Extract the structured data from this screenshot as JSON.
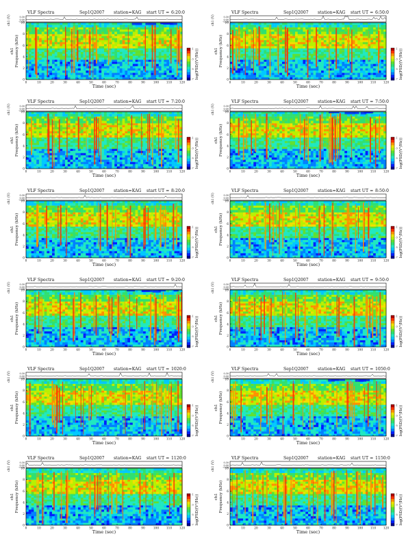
{
  "page": {
    "header_title": "VLF Spectra",
    "date": "Sep1Q2007",
    "station": "station=KAG",
    "start_prefix": "start UT =",
    "time_label": "Time (sec)",
    "top_ylabel": "ch1 (V)",
    "spec_ylabel_channel": "ch1",
    "spec_ylabel": "Frequency (kHz)",
    "colorbar_label": "log(PSD/(V²/Hz))",
    "colorbar_ticks": [
      "-1",
      "-3",
      "-5",
      "-7"
    ]
  },
  "chart_data": [
    {
      "type": "heatmap",
      "start_ut": "6:20:0",
      "xlabel": "Time (sec)",
      "ylabel": "Frequency (kHz)",
      "xlim": [
        0,
        120
      ],
      "ylim": [
        0,
        10
      ],
      "top_ylim": [
        -0.3,
        0.3
      ],
      "xticks": [
        0,
        10,
        20,
        30,
        40,
        50,
        60,
        70,
        80,
        90,
        100,
        110,
        120
      ],
      "yticks": [
        0,
        2,
        4,
        6,
        8,
        10
      ],
      "top_yticks": [
        "0.30",
        "0.00",
        "-0.30"
      ],
      "colormap": "jet"
    },
    {
      "type": "heatmap",
      "start_ut": "6:50:0",
      "xlabel": "Time (sec)",
      "ylabel": "Frequency (kHz)",
      "xlim": [
        0,
        120
      ],
      "ylim": [
        0,
        10
      ],
      "top_ylim": [
        -0.3,
        0.3
      ],
      "xticks": [
        0,
        10,
        20,
        30,
        40,
        50,
        60,
        70,
        80,
        90,
        100,
        110,
        120
      ],
      "yticks": [
        0,
        2,
        4,
        6,
        8,
        10
      ],
      "top_yticks": [
        "0.30",
        "0.00",
        "-0.30"
      ],
      "colormap": "jet"
    },
    {
      "type": "heatmap",
      "start_ut": "7:20:0",
      "xlabel": "Time (sec)",
      "ylabel": "Frequency (kHz)",
      "xlim": [
        0,
        120
      ],
      "ylim": [
        0,
        10
      ],
      "top_ylim": [
        -0.3,
        0.3
      ],
      "xticks": [
        0,
        10,
        20,
        30,
        40,
        50,
        60,
        70,
        80,
        90,
        100,
        110,
        120
      ],
      "yticks": [
        0,
        2,
        4,
        6,
        8,
        10
      ],
      "top_yticks": [
        "0.30",
        "0.00",
        "-0.30"
      ],
      "colormap": "jet"
    },
    {
      "type": "heatmap",
      "start_ut": "7:50:0",
      "xlabel": "Time (sec)",
      "ylabel": "Frequency (kHz)",
      "xlim": [
        0,
        120
      ],
      "ylim": [
        0,
        10
      ],
      "top_ylim": [
        -0.3,
        0.3
      ],
      "xticks": [
        0,
        10,
        20,
        30,
        40,
        50,
        60,
        70,
        80,
        90,
        100,
        110,
        120
      ],
      "yticks": [
        0,
        2,
        4,
        6,
        8,
        10
      ],
      "top_yticks": [
        "0.30",
        "0.00",
        "-0.30"
      ],
      "colormap": "jet"
    },
    {
      "type": "heatmap",
      "start_ut": "8:20:0",
      "xlabel": "Time (sec)",
      "ylabel": "Frequency (kHz)",
      "xlim": [
        0,
        120
      ],
      "ylim": [
        0,
        10
      ],
      "top_ylim": [
        -0.3,
        0.3
      ],
      "xticks": [
        0,
        10,
        20,
        30,
        40,
        50,
        60,
        70,
        80,
        90,
        100,
        110,
        120
      ],
      "yticks": [
        0,
        2,
        4,
        6,
        8,
        10
      ],
      "top_yticks": [
        "0.30",
        "0.00",
        "-0.30"
      ],
      "colormap": "jet"
    },
    {
      "type": "heatmap",
      "start_ut": "8:50:0",
      "xlabel": "Time (sec)",
      "ylabel": "Frequency (kHz)",
      "xlim": [
        0,
        120
      ],
      "ylim": [
        0,
        10
      ],
      "top_ylim": [
        -0.3,
        0.3
      ],
      "xticks": [
        0,
        10,
        20,
        30,
        40,
        50,
        60,
        70,
        80,
        90,
        100,
        110,
        120
      ],
      "yticks": [
        0,
        2,
        4,
        6,
        8,
        10
      ],
      "top_yticks": [
        "0.30",
        "0.00",
        "-0.30"
      ],
      "colormap": "jet"
    },
    {
      "type": "heatmap",
      "start_ut": "9:20:0",
      "xlabel": "Time (sec)",
      "ylabel": "Frequency (kHz)",
      "xlim": [
        0,
        120
      ],
      "ylim": [
        0,
        10
      ],
      "top_ylim": [
        -0.3,
        0.3
      ],
      "xticks": [
        0,
        10,
        20,
        30,
        40,
        50,
        60,
        70,
        80,
        90,
        100,
        110,
        120
      ],
      "yticks": [
        0,
        2,
        4,
        6,
        8,
        10
      ],
      "top_yticks": [
        "0.30",
        "0.00",
        "-0.30"
      ],
      "colormap": "jet"
    },
    {
      "type": "heatmap",
      "start_ut": "9:50:0",
      "xlabel": "Time (sec)",
      "ylabel": "Frequency (kHz)",
      "xlim": [
        0,
        120
      ],
      "ylim": [
        0,
        10
      ],
      "top_ylim": [
        -0.3,
        0.3
      ],
      "xticks": [
        0,
        10,
        20,
        30,
        40,
        50,
        60,
        70,
        80,
        90,
        100,
        110,
        120
      ],
      "yticks": [
        0,
        2,
        4,
        6,
        8,
        10
      ],
      "top_yticks": [
        "0.30",
        "0.00",
        "-0.30"
      ],
      "colormap": "jet"
    },
    {
      "type": "heatmap",
      "start_ut": "1020:0",
      "xlabel": "Time (sec)",
      "ylabel": "Frequency (kHz)",
      "xlim": [
        0,
        120
      ],
      "ylim": [
        0,
        10
      ],
      "top_ylim": [
        -0.3,
        0.3
      ],
      "xticks": [
        0,
        10,
        20,
        30,
        40,
        50,
        60,
        70,
        80,
        90,
        100,
        110,
        120
      ],
      "yticks": [
        0,
        2,
        4,
        6,
        8,
        10
      ],
      "top_yticks": [
        "0.30",
        "0.00",
        "-0.30"
      ],
      "colormap": "jet"
    },
    {
      "type": "heatmap",
      "start_ut": "1050:0",
      "xlabel": "Time (sec)",
      "ylabel": "Frequency (kHz)",
      "xlim": [
        0,
        120
      ],
      "ylim": [
        0,
        10
      ],
      "top_ylim": [
        -0.3,
        0.3
      ],
      "xticks": [
        0,
        10,
        20,
        30,
        40,
        50,
        60,
        70,
        80,
        90,
        100,
        110,
        120
      ],
      "yticks": [
        0,
        2,
        4,
        6,
        8,
        10
      ],
      "top_yticks": [
        "0.30",
        "0.00",
        "-0.30"
      ],
      "colormap": "jet"
    },
    {
      "type": "heatmap",
      "start_ut": "1120:0",
      "xlabel": "Time (sec)",
      "ylabel": "Frequency (kHz)",
      "xlim": [
        0,
        120
      ],
      "ylim": [
        0,
        10
      ],
      "top_ylim": [
        -0.3,
        0.3
      ],
      "xticks": [
        0,
        10,
        20,
        30,
        40,
        50,
        60,
        70,
        80,
        90,
        100,
        110,
        120
      ],
      "yticks": [
        0,
        2,
        4,
        6,
        8,
        10
      ],
      "top_yticks": [
        "0.30",
        "0.00",
        "-0.30"
      ],
      "colormap": "jet"
    },
    {
      "type": "heatmap",
      "start_ut": "1150:0",
      "xlabel": "Time (sec)",
      "ylabel": "Frequency (kHz)",
      "xlim": [
        0,
        120
      ],
      "ylim": [
        0,
        10
      ],
      "top_ylim": [
        -0.3,
        0.3
      ],
      "xticks": [
        0,
        10,
        20,
        30,
        40,
        50,
        60,
        70,
        80,
        90,
        100,
        110,
        120
      ],
      "yticks": [
        0,
        2,
        4,
        6,
        8,
        10
      ],
      "top_yticks": [
        "0.30",
        "0.00",
        "-0.30"
      ],
      "colormap": "jet"
    }
  ]
}
